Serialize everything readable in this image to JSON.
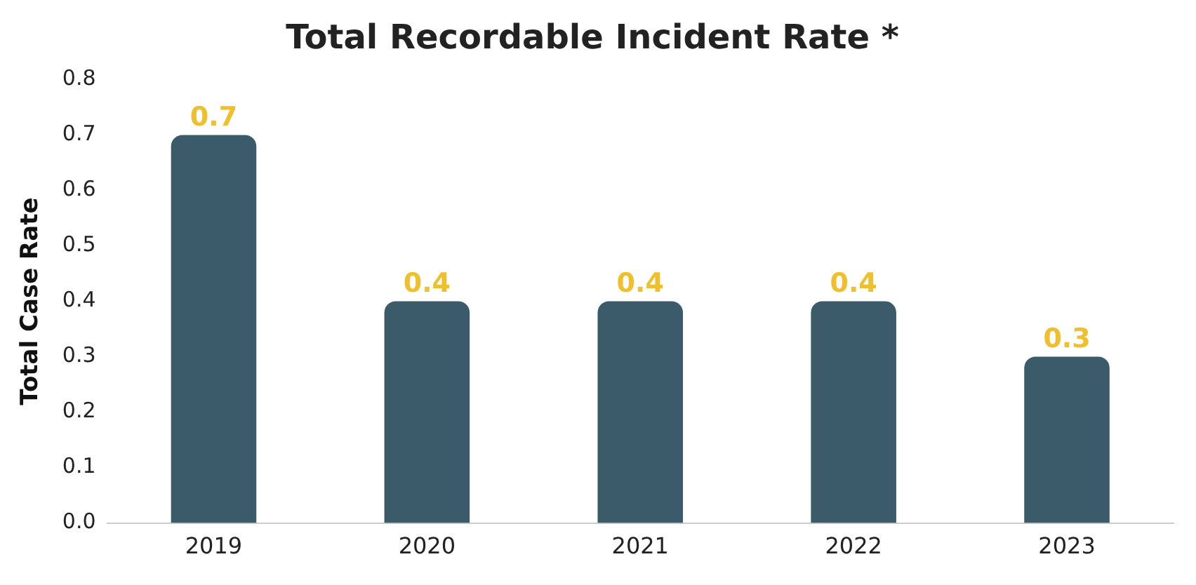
{
  "chart_data": {
    "type": "bar",
    "title": "Total Recordable Incident Rate *",
    "ylabel": "Total Case Rate",
    "categories": [
      "2019",
      "2020",
      "2021",
      "2022",
      "2023"
    ],
    "values": [
      0.7,
      0.4,
      0.4,
      0.4,
      0.3
    ],
    "color": "#3b5b6b",
    "data_labels": true,
    "ylim": [
      0,
      0.8
    ],
    "yticks": [
      {
        "value": 0,
        "label": "0.0"
      },
      0.1,
      0.2,
      0.3,
      0.4,
      0.5,
      0.6,
      0.7,
      0.8
    ],
    "grid": false,
    "legend": false
  }
}
